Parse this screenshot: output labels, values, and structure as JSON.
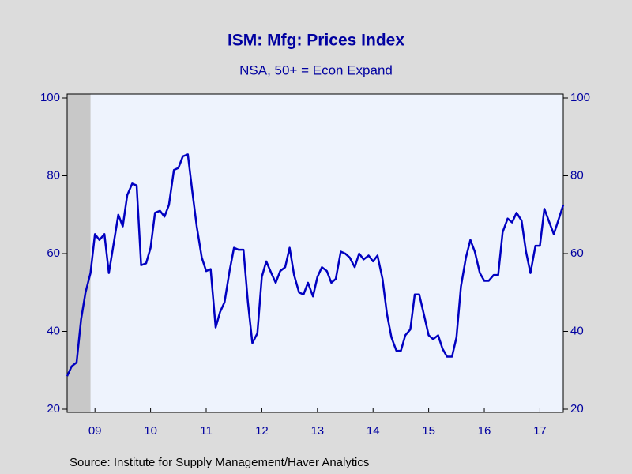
{
  "chart_data": {
    "type": "line",
    "title": "ISM: Mfg: Prices Index",
    "subtitle": "NSA, 50+ = Econ Expand",
    "source": "Source:  Institute for Supply Management/Haver Analytics",
    "color": "#0000c0",
    "x": [
      2009,
      2009.08,
      2009.17,
      2009.25,
      2009.33,
      2009.42,
      2009.5,
      2009.58,
      2009.67,
      2009.75,
      2009.83,
      2009.92,
      2010,
      2010.08,
      2010.17,
      2010.25,
      2010.33,
      2010.42,
      2010.5,
      2010.58,
      2010.67,
      2010.75,
      2010.83,
      2010.92,
      2011,
      2011.08,
      2011.17,
      2011.25,
      2011.33,
      2011.42,
      2011.5,
      2011.58,
      2011.67,
      2011.75,
      2011.83,
      2011.92,
      2012,
      2012.08,
      2012.17,
      2012.25,
      2012.33,
      2012.42,
      2012.5,
      2012.58,
      2012.67,
      2012.75,
      2012.83,
      2012.92,
      2013,
      2013.08,
      2013.17,
      2013.25,
      2013.33,
      2013.42,
      2013.5,
      2013.58,
      2013.67,
      2013.75,
      2013.83,
      2013.92,
      2014,
      2014.08,
      2014.17,
      2014.25,
      2014.33,
      2014.42,
      2014.5,
      2014.58,
      2014.67,
      2014.75,
      2014.83,
      2014.92,
      2015,
      2015.08,
      2015.17,
      2015.25,
      2015.33,
      2015.42,
      2015.5,
      2015.58,
      2015.67,
      2015.75,
      2015.83,
      2015.92,
      2016,
      2016.08,
      2016.17,
      2016.25,
      2016.33,
      2016.42,
      2016.5,
      2016.58,
      2016.67,
      2016.75,
      2016.83,
      2016.92,
      2017,
      2017.08,
      2017.17,
      2017.25,
      2017.33,
      2017.42,
      2017.5,
      2017.58,
      2017.67,
      2017.75,
      2017.83,
      2017.92
    ],
    "values": [
      28.5,
      31,
      32,
      43,
      50,
      55,
      65,
      63.5,
      65,
      55,
      62,
      70,
      67,
      75,
      78,
      77.5,
      57,
      57.5,
      61.5,
      70.5,
      71,
      69.5,
      72.5,
      81.5,
      82,
      85,
      85.5,
      76,
      67,
      59,
      55.5,
      56,
      41,
      45,
      47.5,
      55.5,
      61.5,
      61,
      61,
      47.5,
      37,
      39.5,
      54,
      58,
      55,
      52.5,
      55.5,
      56.5,
      61.5,
      54.5,
      50,
      49.5,
      52.5,
      49,
      54,
      56.5,
      55.5,
      52.5,
      53.5,
      60.5,
      60,
      59,
      56.5,
      60,
      58.5,
      59.5,
      58,
      59.5,
      53.5,
      44.5,
      38.5,
      35,
      35,
      39,
      40.5,
      49.5,
      49.5,
      44,
      39,
      38,
      39,
      35.5,
      33.5,
      33.5,
      38.5,
      51.5,
      59,
      63.5,
      60.5,
      55,
      53,
      53,
      54.5,
      54.5,
      65.5,
      69,
      68,
      70.5,
      68.5,
      60.5,
      55,
      62,
      62,
      71.5,
      68,
      65,
      68.5,
      72.5
    ],
    "xlim": [
      2009,
      2017.92
    ],
    "xticks": [
      {
        "value": 2009.5,
        "label": "09"
      },
      {
        "value": 2010.5,
        "label": "10"
      },
      {
        "value": 2011.5,
        "label": "11"
      },
      {
        "value": 2012.5,
        "label": "12"
      },
      {
        "value": 2013.5,
        "label": "13"
      },
      {
        "value": 2014.5,
        "label": "14"
      },
      {
        "value": 2015.5,
        "label": "15"
      },
      {
        "value": 2016.5,
        "label": "16"
      },
      {
        "value": 2017.5,
        "label": "17"
      }
    ],
    "ylim": [
      20,
      100
    ],
    "yticks": [
      20,
      40,
      60,
      80,
      100
    ],
    "y2lim": [
      20,
      100
    ],
    "y2ticks": [
      20,
      40,
      60,
      80,
      100
    ],
    "recession": [
      2009,
      2009.42
    ],
    "recession_color": "#c8c8c8",
    "grid": false
  }
}
